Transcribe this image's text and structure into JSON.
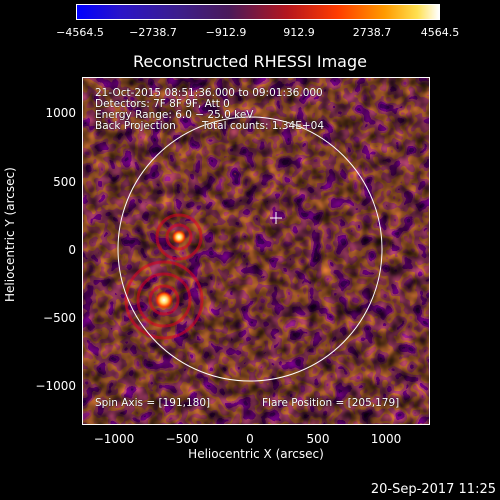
{
  "colorbar": {
    "ticks": [
      "−4564.5",
      "−2738.7",
      "−912.9",
      "912.9",
      "2738.7",
      "4564.5"
    ]
  },
  "plot": {
    "title": "Reconstructed RHESSI Image",
    "xlabel": "Heliocentric X (arcsec)",
    "ylabel": "Heliocentric Y (arcsec)",
    "xticks": [
      "−1000",
      "−500",
      "0",
      "500",
      "1000"
    ],
    "yticks": [
      "1000",
      "500",
      "0",
      "−500",
      "−1000"
    ],
    "annotations": {
      "time_range": "21-Oct-2015 08:51:36.000 to 09:01:36.000",
      "detectors": "Detectors: 7F 8F 9F, Att 0",
      "energy_range": "Energy Range: 6.0 − 25.0 keV",
      "method": "Back Projection",
      "total_counts": "Total counts: 1.34E+04",
      "spin_axis": "Spin Axis = [191,180]",
      "flare_position": "Flare Position = [205,179]"
    }
  },
  "timestamp": "20-Sep-2017 11:25",
  "colors": {
    "background": "#000000",
    "foreground": "#ffffff"
  }
}
